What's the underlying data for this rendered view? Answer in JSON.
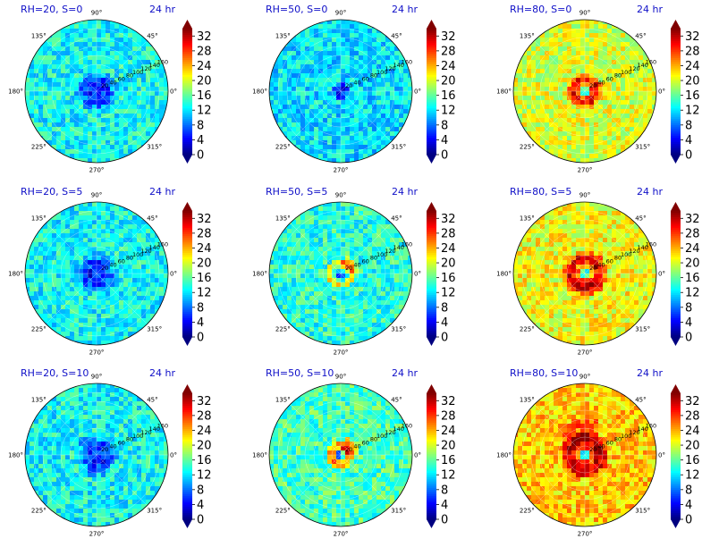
{
  "figure": {
    "time_label": "24 hr",
    "colormap": "jet",
    "colors": {
      "title": "#1010c8",
      "grid": "#ffffff",
      "spine": "#000000"
    }
  },
  "chart_data": {
    "type": "heatmap",
    "projection": "polar",
    "layout": {
      "rows": 3,
      "cols": 3
    },
    "theta_ticks": [
      "0°",
      "45°",
      "90°",
      "135°",
      "180°",
      "225°",
      "270°",
      "315°"
    ],
    "r_ticks": [
      "20",
      "40",
      "60",
      "80",
      "100",
      "120",
      "140",
      "160"
    ],
    "r_label_angle_deg": 22.5,
    "colorbar": {
      "ticks": [
        "0",
        "4",
        "8",
        "12",
        "16",
        "20",
        "24",
        "28",
        "32"
      ],
      "range": [
        0,
        34
      ],
      "extend": "both"
    },
    "panels": [
      {
        "title": "RH=20, S=0",
        "time": "24 hr",
        "rh": 20,
        "s": 0,
        "center_value": 5,
        "eye_radius": 20,
        "ring_value": null,
        "ring_inner": null,
        "ring_outer": null,
        "background_value": 13,
        "asymmetry": "none"
      },
      {
        "title": "RH=50, S=0",
        "time": "24 hr",
        "rh": 50,
        "s": 0,
        "center_value": 5,
        "eye_radius": 10,
        "ring_value": null,
        "ring_inner": null,
        "ring_outer": null,
        "background_value": 12,
        "asymmetry": "none"
      },
      {
        "title": "RH=80, S=0",
        "time": "24 hr",
        "rh": 80,
        "s": 0,
        "center_value": 14,
        "eye_radius": 10,
        "ring_value": 30,
        "ring_inner": 10,
        "ring_outer": 40,
        "background_value": 20,
        "asymmetry": "none"
      },
      {
        "title": "RH=20, S=5",
        "time": "24 hr",
        "rh": 20,
        "s": 5,
        "center_value": 5,
        "eye_radius": 20,
        "ring_value": null,
        "ring_inner": null,
        "ring_outer": null,
        "background_value": 13,
        "asymmetry": "none"
      },
      {
        "title": "RH=50, S=5",
        "time": "24 hr",
        "rh": 50,
        "s": 5,
        "center_value": 8,
        "eye_radius": 10,
        "ring_value": 22,
        "ring_inner": 20,
        "ring_outer": 35,
        "background_value": 14,
        "asymmetry": "north-east"
      },
      {
        "title": "RH=80, S=5",
        "time": "24 hr",
        "rh": 80,
        "s": 5,
        "center_value": 14,
        "eye_radius": 10,
        "ring_value": 31,
        "ring_inner": 15,
        "ring_outer": 50,
        "background_value": 21,
        "asymmetry": "none"
      },
      {
        "title": "RH=20, S=10",
        "time": "24 hr",
        "rh": 20,
        "s": 10,
        "center_value": 5,
        "eye_radius": 20,
        "ring_value": null,
        "ring_inner": null,
        "ring_outer": null,
        "background_value": 13,
        "asymmetry": "none"
      },
      {
        "title": "RH=50, S=10",
        "time": "24 hr",
        "rh": 50,
        "s": 10,
        "center_value": 10,
        "eye_radius": 10,
        "ring_value": 26,
        "ring_inner": 10,
        "ring_outer": 30,
        "background_value": 15,
        "asymmetry": "north-east"
      },
      {
        "title": "RH=80, S=10",
        "time": "24 hr",
        "rh": 80,
        "s": 10,
        "center_value": 14,
        "eye_radius": 10,
        "ring_value": 32,
        "ring_inner": 15,
        "ring_outer": 55,
        "background_value": 23,
        "asymmetry": "north"
      }
    ]
  }
}
